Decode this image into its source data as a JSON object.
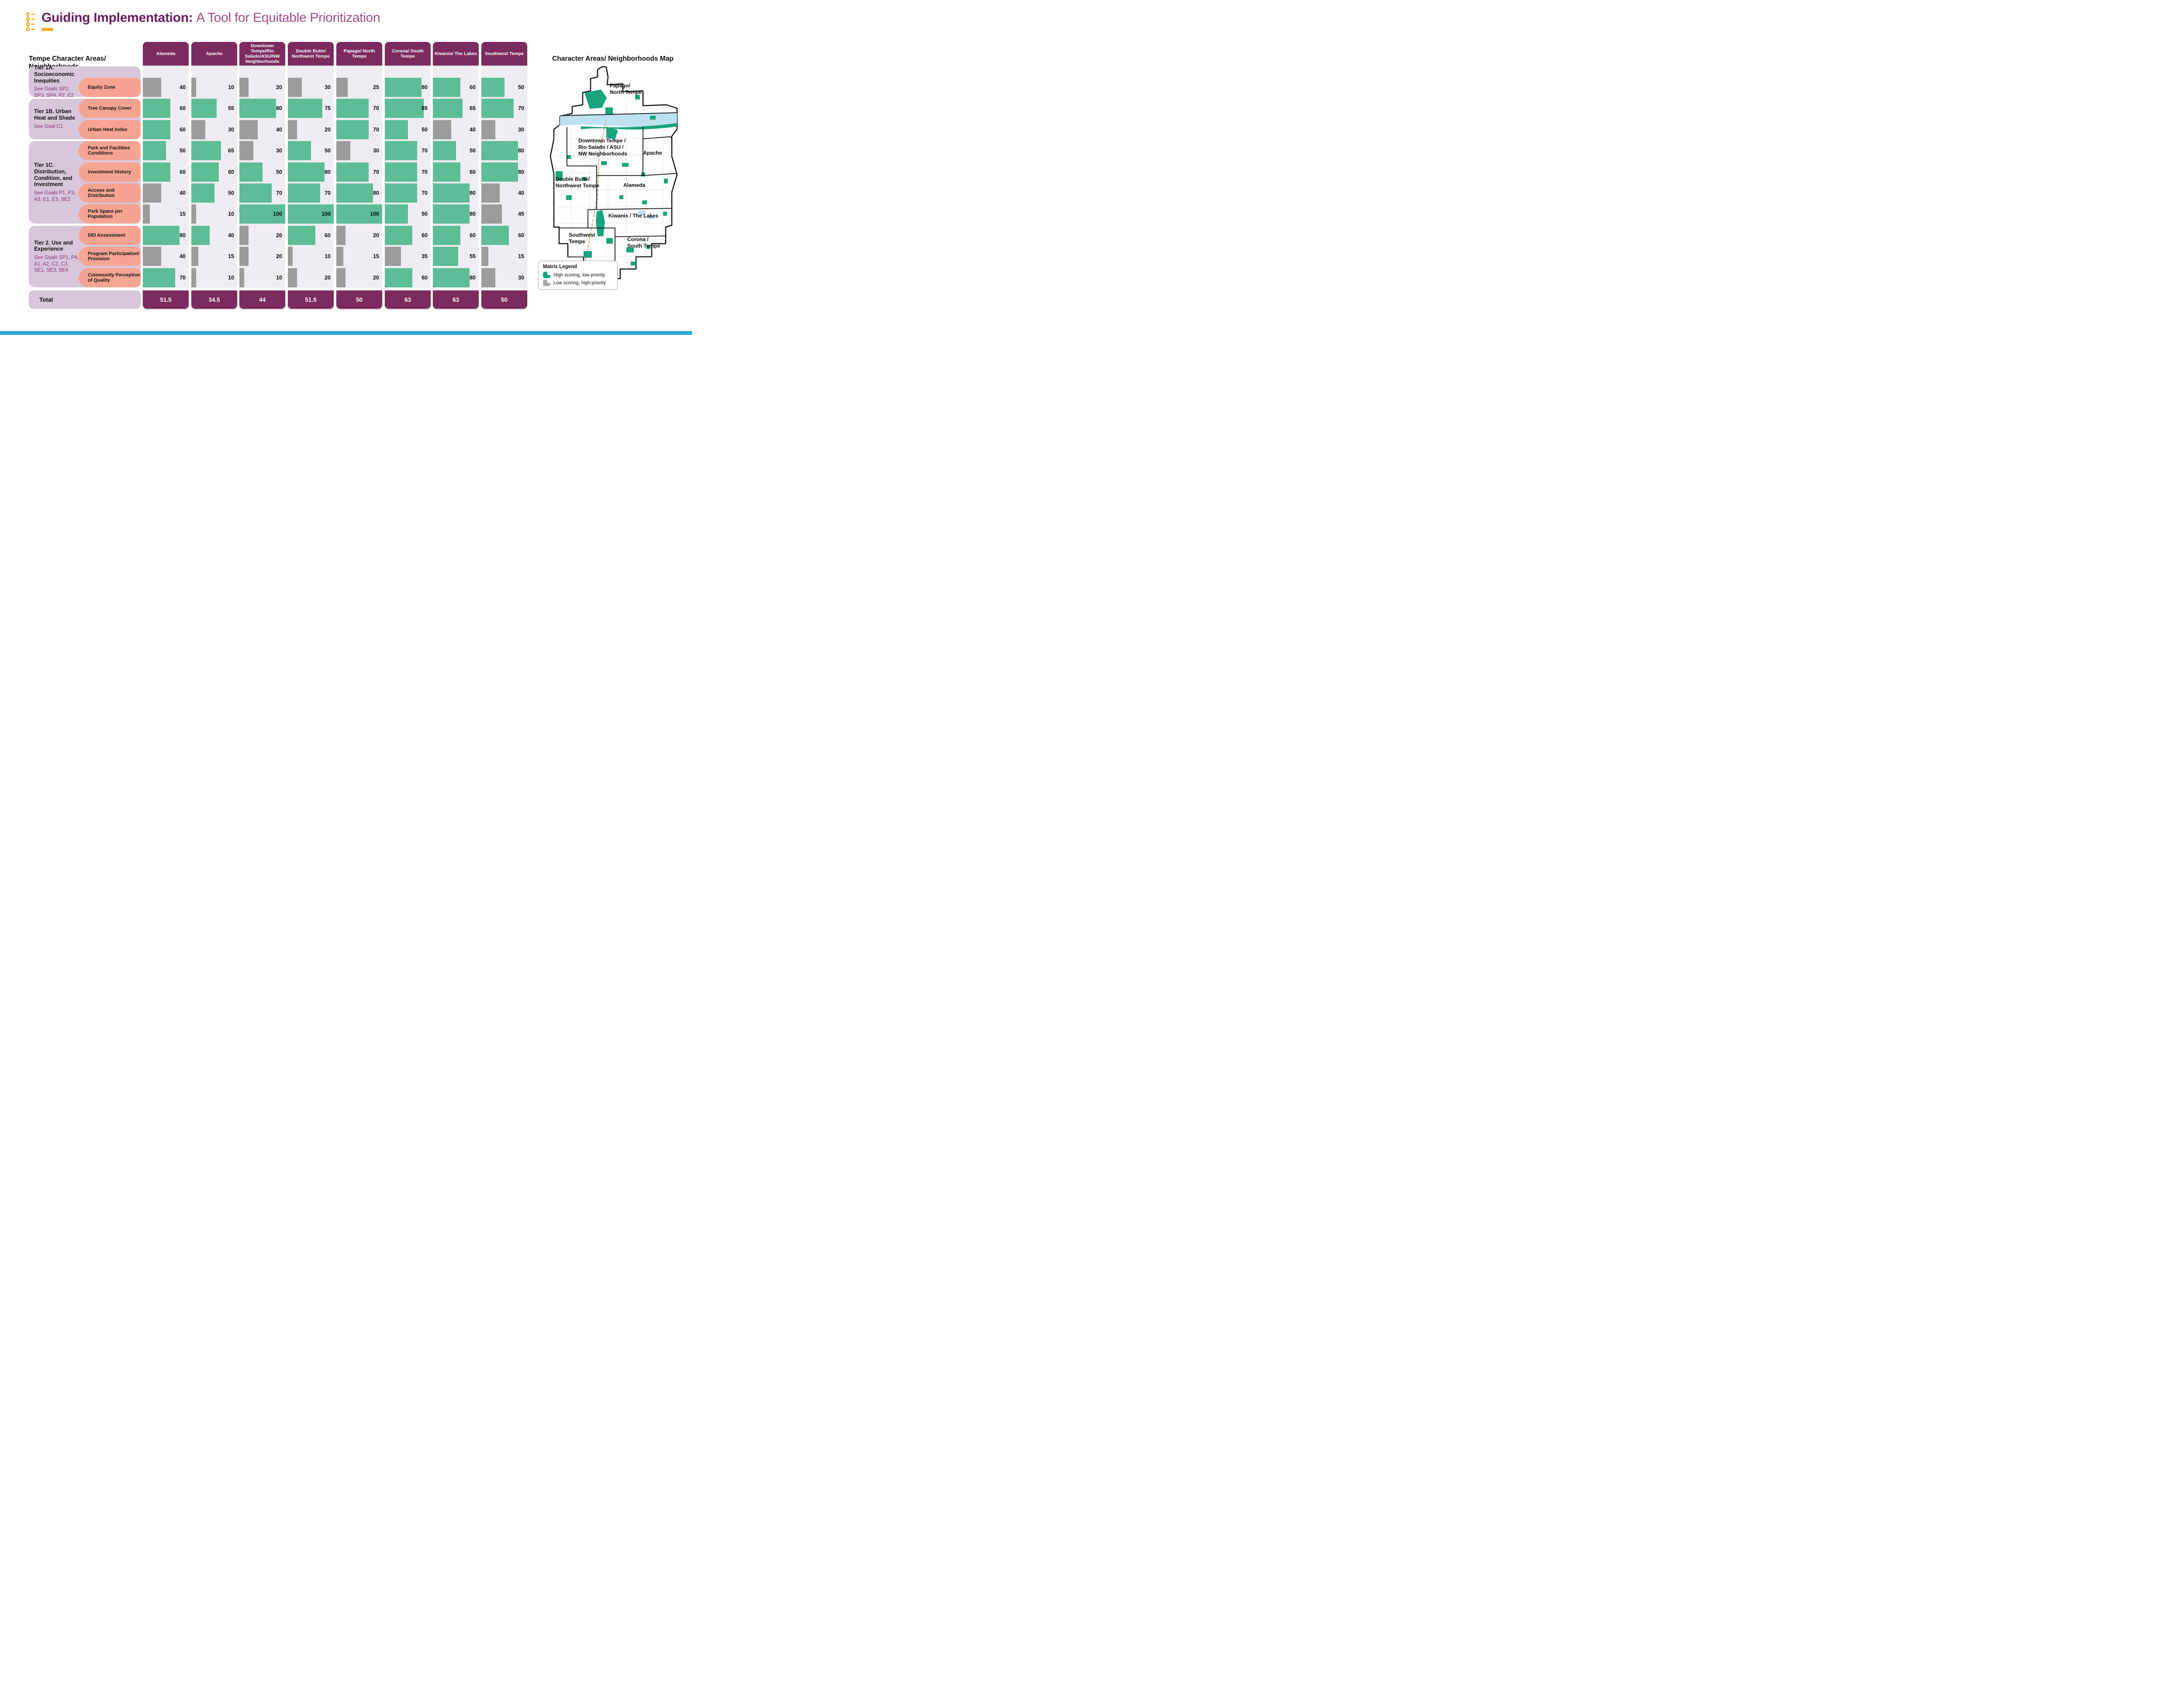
{
  "title": {
    "bold": "Guiding Implementation:",
    "light": "A Tool for Equitable Prioritization",
    "icon": "timeline-list-icon",
    "accent_color": "#F7A823"
  },
  "matrix": {
    "heading": "Tempe Character Areas/ Neighborhoods",
    "total_label": "Total",
    "tiers": [
      {
        "title": "Tier 1A. Socioeconomic Inequities",
        "goals": "See Goals SP2, SP3, SP4, P2, E2"
      },
      {
        "title": "Tier 1B. Urban Heat and Shade",
        "goals": "See Goal C1"
      },
      {
        "title": "Tier 1C. Distribution, Condition, and Investment",
        "goals": "See Goals P1, P3, A3, E1, E3, SE2"
      },
      {
        "title": "Tier 2. Use and Experience",
        "goals": "See Goals SP1, P4, A1, A2, C2, C3, SE1, SE3,  SE4"
      }
    ],
    "metrics": [
      "Equity Zone",
      "Tree Canopy Cover",
      "Urban Heat Index",
      "Park and Facilities Conditions",
      "Investment History",
      "Access and Distribution",
      "Park Space per Population",
      "DEI Assessment",
      "Program Participation/ Provision",
      "Community Perception of Quality"
    ],
    "columns": [
      {
        "name": "Alameda",
        "values": [
          40,
          60,
          60,
          50,
          60,
          40,
          15,
          80,
          40,
          70
        ],
        "high": [
          false,
          true,
          true,
          true,
          true,
          false,
          false,
          true,
          false,
          true
        ],
        "total": "51.5"
      },
      {
        "name": "Apache",
        "values": [
          10,
          55,
          30,
          65,
          60,
          50,
          10,
          40,
          15,
          10
        ],
        "high": [
          false,
          true,
          false,
          true,
          true,
          true,
          false,
          true,
          false,
          false
        ],
        "total": "34.5"
      },
      {
        "name": "Downtown Tempe/Rio Salado/ASU/NW Neighborhoods",
        "values": [
          20,
          80,
          40,
          30,
          50,
          70,
          100,
          20,
          20,
          10
        ],
        "high": [
          false,
          true,
          false,
          false,
          true,
          true,
          true,
          false,
          false,
          false
        ],
        "total": "44"
      },
      {
        "name": "Double Butte/ Northwest Tempe",
        "values": [
          30,
          75,
          20,
          50,
          80,
          70,
          100,
          60,
          10,
          20
        ],
        "high": [
          false,
          true,
          false,
          true,
          true,
          true,
          true,
          true,
          false,
          false
        ],
        "total": "51.5"
      },
      {
        "name": "Papago/ North Tempe",
        "values": [
          25,
          70,
          70,
          30,
          70,
          80,
          100,
          20,
          15,
          20
        ],
        "high": [
          false,
          true,
          true,
          false,
          true,
          true,
          true,
          false,
          false,
          false
        ],
        "total": "50"
      },
      {
        "name": "Corona/ South Tempe",
        "values": [
          80,
          85,
          50,
          70,
          70,
          70,
          50,
          60,
          35,
          60
        ],
        "high": [
          true,
          true,
          true,
          true,
          true,
          true,
          true,
          true,
          false,
          true
        ],
        "total": "63"
      },
      {
        "name": "Kiwanis/ The Lakes",
        "values": [
          60,
          65,
          40,
          50,
          60,
          80,
          80,
          60,
          55,
          80
        ],
        "high": [
          true,
          true,
          false,
          true,
          true,
          true,
          true,
          true,
          true,
          true
        ],
        "total": "63"
      },
      {
        "name": "Southwest Tempe",
        "values": [
          50,
          70,
          30,
          80,
          80,
          40,
          45,
          60,
          15,
          30
        ],
        "high": [
          true,
          true,
          false,
          true,
          true,
          false,
          false,
          true,
          false,
          false
        ],
        "total": "50"
      }
    ]
  },
  "map": {
    "title": "Character Areas/ Neighborhoods Map",
    "labels": [
      {
        "id": "papago",
        "lines": [
          "Papago/",
          "North Tempe"
        ]
      },
      {
        "id": "downtown",
        "lines": [
          "Downtown Tempe /",
          "Rio Salado / ASU /",
          "NW Neighborhoods"
        ]
      },
      {
        "id": "apache",
        "lines": [
          "Apache"
        ]
      },
      {
        "id": "double-butte",
        "lines": [
          "Double Butte/",
          "Northwest Tempe"
        ]
      },
      {
        "id": "alameda",
        "lines": [
          "Alameda"
        ]
      },
      {
        "id": "kiwanis",
        "lines": [
          "Kiwanis / The  Lakes"
        ]
      },
      {
        "id": "southwest",
        "lines": [
          "Southwest",
          "Tempe"
        ]
      },
      {
        "id": "corona",
        "lines": [
          "Corona /",
          "South Tempe"
        ]
      }
    ]
  },
  "legend": {
    "title": "Matrix Legend",
    "items": [
      {
        "label": "High scoring, low-priority",
        "color": "#0EA57D"
      },
      {
        "label": "Low scoring, high-priority",
        "color": "#A9A9A9"
      }
    ]
  },
  "colors": {
    "header_purple": "#7B2B5E",
    "tier_lavender": "#D8C6DB",
    "metric_salmon": "#F6A492",
    "column_bg": "#F0EDF2",
    "bar_high_green": "#5CBD96",
    "bar_low_gray": "#9C9C9C",
    "goals_text": "#8C2D71",
    "title_dark": "#681B60",
    "title_light": "#A44A86",
    "icon_orange": "#F7A823",
    "map_green": "#19A47C",
    "river_blue": "#BEE1F1"
  },
  "chart_data": {
    "type": "bar",
    "title": "Guiding Implementation: A Tool for Equitable Prioritization",
    "subtitle_note": "Horizontal score bars per metric per neighborhood, scale 0-100",
    "categories": [
      "Alameda",
      "Apache",
      "Downtown Tempe/Rio Salado/ASU/NW Neighborhoods",
      "Double Butte/ Northwest Tempe",
      "Papago/ North Tempe",
      "Corona/ South Tempe",
      "Kiwanis/ The Lakes",
      "Southwest Tempe"
    ],
    "series": [
      {
        "name": "Equity Zone",
        "values": [
          40,
          10,
          20,
          30,
          25,
          80,
          60,
          50
        ]
      },
      {
        "name": "Tree Canopy Cover",
        "values": [
          60,
          55,
          80,
          75,
          70,
          85,
          65,
          70
        ]
      },
      {
        "name": "Urban Heat Index",
        "values": [
          60,
          30,
          40,
          20,
          70,
          50,
          40,
          30
        ]
      },
      {
        "name": "Park and Facilities Conditions",
        "values": [
          50,
          65,
          30,
          50,
          30,
          70,
          50,
          80
        ]
      },
      {
        "name": "Investment History",
        "values": [
          60,
          60,
          50,
          80,
          70,
          70,
          60,
          80
        ]
      },
      {
        "name": "Access and Distribution",
        "values": [
          40,
          50,
          70,
          70,
          80,
          70,
          80,
          40
        ]
      },
      {
        "name": "Park Space per Population",
        "values": [
          15,
          10,
          100,
          100,
          100,
          50,
          80,
          45
        ]
      },
      {
        "name": "DEI Assessment",
        "values": [
          80,
          40,
          20,
          60,
          20,
          60,
          60,
          60
        ]
      },
      {
        "name": "Program Participation/ Provision",
        "values": [
          40,
          15,
          20,
          10,
          15,
          35,
          55,
          15
        ]
      },
      {
        "name": "Community Perception of Quality",
        "values": [
          70,
          10,
          10,
          20,
          20,
          60,
          80,
          30
        ]
      }
    ],
    "totals": [
      51.5,
      34.5,
      44,
      51.5,
      50,
      63,
      63,
      50
    ],
    "value_range": [
      0,
      100
    ],
    "legend": [
      "High scoring, low-priority (green)",
      "Low scoring, high-priority (gray)"
    ],
    "grid": false,
    "legend_position": "bottom-right"
  }
}
